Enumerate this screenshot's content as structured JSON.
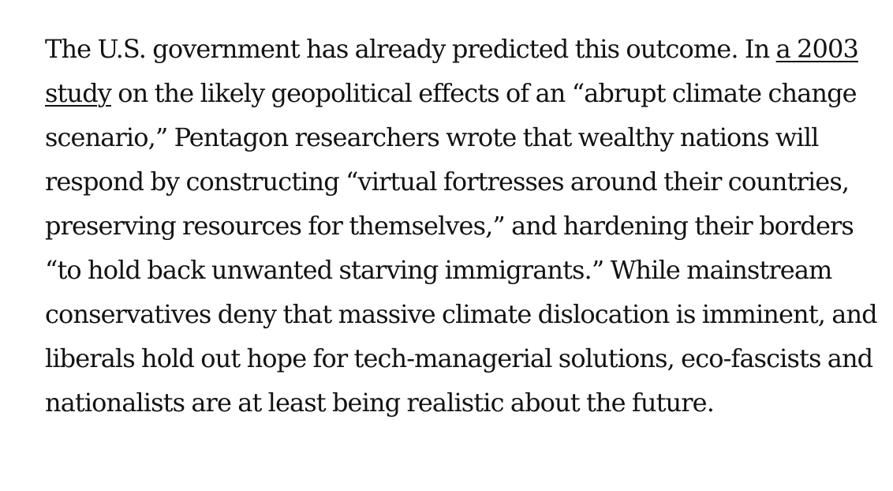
{
  "article": {
    "paragraph": {
      "text_before_link": "The U.S. government has already predicted this outcome. In ",
      "link_text": "a 2003 study",
      "text_after_link": " on the likely geopolitical effects of an “abrupt climate change scenario,” Pentagon researchers wrote that wealthy nations will respond by constructing “virtual fortresses around their countries, preserving resources for themselves,” and hardening their borders “to hold back unwanted starving immigrants.” While mainstream conservatives deny that massive climate dislocation is imminent, and liberals hold out hope for tech-managerial solutions, eco-fascists and nationalists are at least being realistic about the future."
    }
  }
}
